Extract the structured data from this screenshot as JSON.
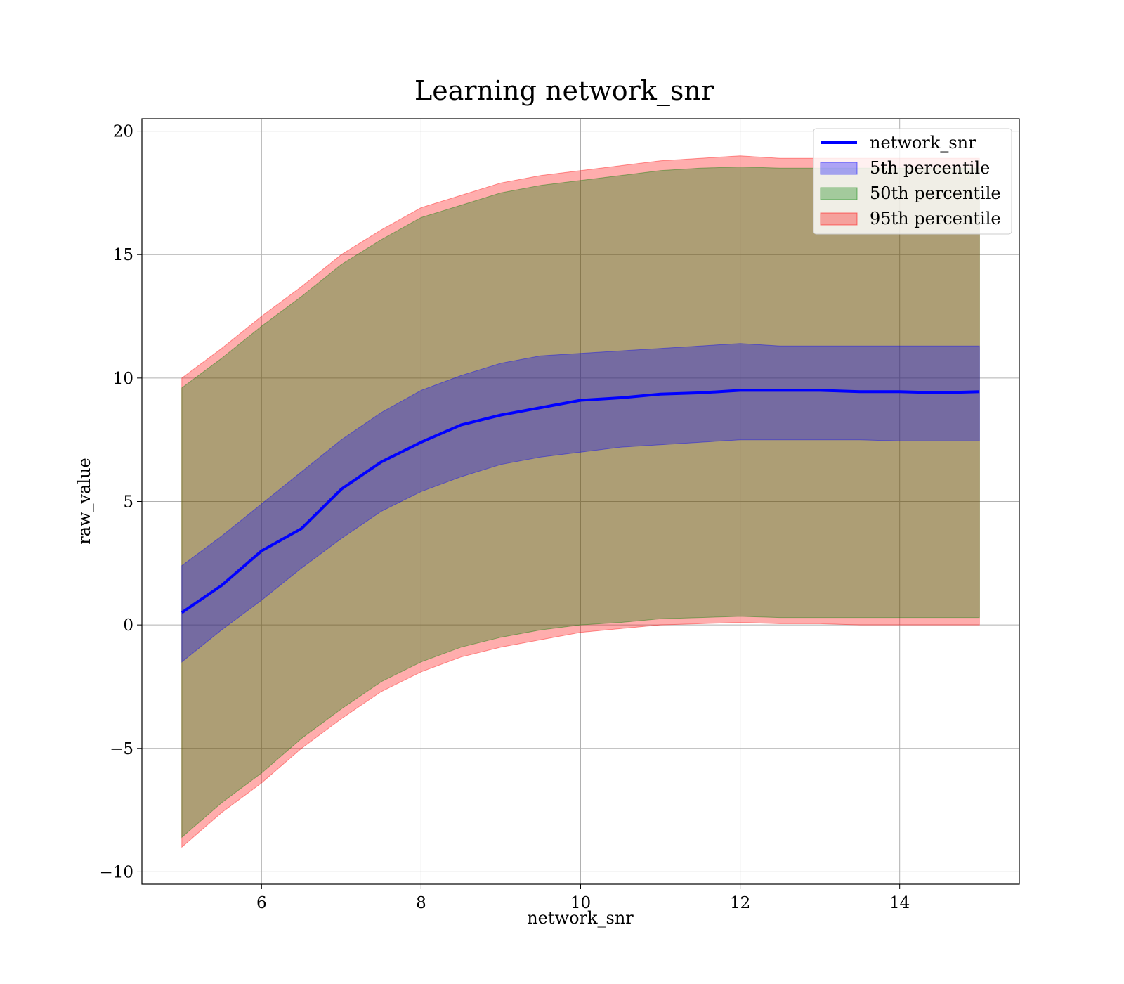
{
  "chart_data": {
    "type": "area",
    "title": "Learning network_snr",
    "xlabel": "network_snr",
    "ylabel": "raw_value",
    "xlim": [
      4.5,
      15.5
    ],
    "ylim": [
      -10.5,
      20.5
    ],
    "xticks": [
      6,
      8,
      10,
      12,
      14
    ],
    "yticks": [
      -10,
      -5,
      0,
      5,
      10,
      15,
      20
    ],
    "xtick_labels": [
      "6",
      "8",
      "10",
      "12",
      "14"
    ],
    "ytick_labels": [
      "−10",
      "−5",
      "0",
      "5",
      "10",
      "15",
      "20"
    ],
    "grid": true,
    "legend_position": "top-right",
    "colors": {
      "line": "#0000ff",
      "p5": "#0000ff",
      "p50": "#008000",
      "p95": "#ff0000"
    },
    "x": [
      5.0,
      5.5,
      6.0,
      6.5,
      7.0,
      7.5,
      8.0,
      8.5,
      9.0,
      9.5,
      10.0,
      10.5,
      11.0,
      11.5,
      12.0,
      12.5,
      13.0,
      13.5,
      14.0,
      14.5,
      15.0
    ],
    "line": {
      "name": "network_snr",
      "values": [
        0.5,
        1.6,
        3.0,
        3.9,
        5.5,
        6.6,
        7.4,
        8.1,
        8.5,
        8.8,
        9.1,
        9.2,
        9.35,
        9.4,
        9.5,
        9.5,
        9.5,
        9.45,
        9.45,
        9.4,
        9.45
      ]
    },
    "bands": [
      {
        "name": "95th percentile",
        "lower": [
          -9.0,
          -7.6,
          -6.4,
          -5.0,
          -3.8,
          -2.7,
          -1.9,
          -1.3,
          -0.9,
          -0.6,
          -0.3,
          -0.15,
          0.0,
          0.05,
          0.1,
          0.05,
          0.05,
          0.0,
          0.0,
          0.0,
          0.0
        ],
        "upper": [
          10.0,
          11.2,
          12.5,
          13.7,
          15.0,
          16.0,
          16.9,
          17.4,
          17.9,
          18.2,
          18.4,
          18.6,
          18.8,
          18.9,
          19.0,
          18.9,
          18.9,
          18.9,
          18.9,
          18.9,
          18.9
        ]
      },
      {
        "name": "50th percentile",
        "lower": [
          -8.6,
          -7.2,
          -6.0,
          -4.6,
          -3.4,
          -2.3,
          -1.5,
          -0.9,
          -0.5,
          -0.2,
          0.0,
          0.1,
          0.25,
          0.3,
          0.35,
          0.3,
          0.3,
          0.3,
          0.3,
          0.3,
          0.3
        ],
        "upper": [
          9.6,
          10.8,
          12.1,
          13.3,
          14.6,
          15.6,
          16.5,
          17.0,
          17.5,
          17.8,
          18.0,
          18.2,
          18.4,
          18.5,
          18.55,
          18.5,
          18.5,
          18.5,
          18.5,
          18.5,
          18.5
        ]
      },
      {
        "name": "5th percentile",
        "lower": [
          -1.5,
          -0.2,
          1.0,
          2.3,
          3.5,
          4.6,
          5.4,
          6.0,
          6.5,
          6.8,
          7.0,
          7.2,
          7.3,
          7.4,
          7.5,
          7.5,
          7.5,
          7.5,
          7.45,
          7.45,
          7.45
        ],
        "upper": [
          2.4,
          3.6,
          4.9,
          6.2,
          7.5,
          8.6,
          9.5,
          10.1,
          10.6,
          10.9,
          11.0,
          11.1,
          11.2,
          11.3,
          11.4,
          11.3,
          11.3,
          11.3,
          11.3,
          11.3,
          11.3
        ]
      }
    ],
    "legend": [
      {
        "label": "network_snr",
        "kind": "line",
        "color": "#0000ff"
      },
      {
        "label": "5th percentile",
        "kind": "patch",
        "color": "#0000ff"
      },
      {
        "label": "50th percentile",
        "kind": "patch",
        "color": "#008000"
      },
      {
        "label": "95th percentile",
        "kind": "patch",
        "color": "#ff0000"
      }
    ]
  }
}
